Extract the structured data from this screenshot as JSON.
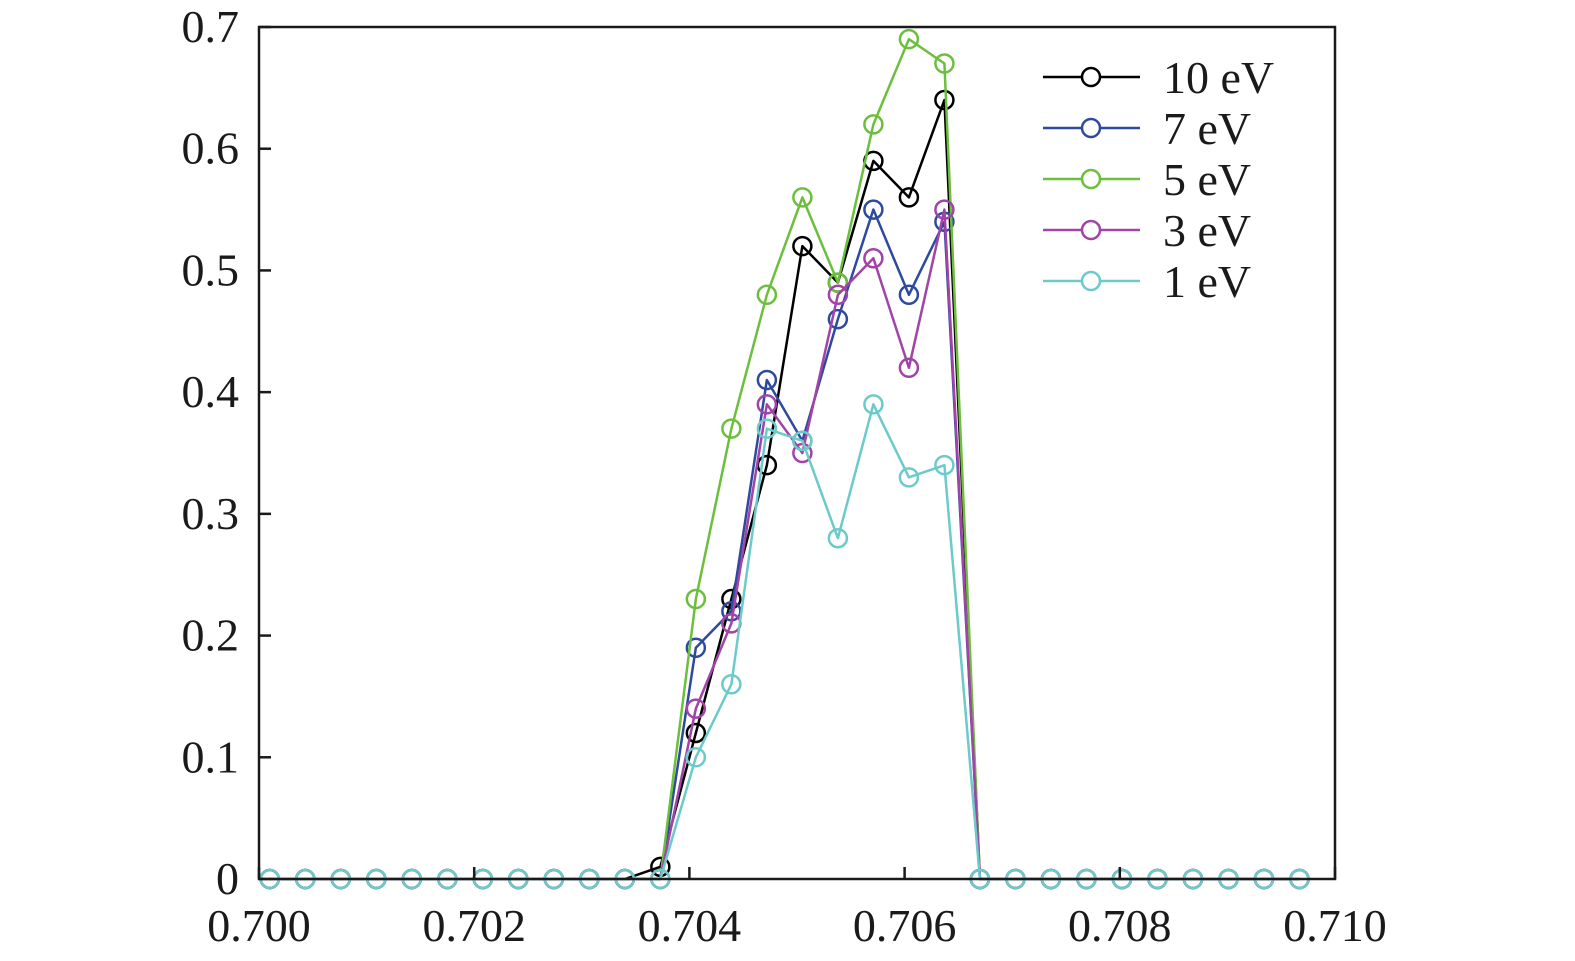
{
  "chart_data": {
    "type": "line",
    "title": "",
    "xlabel": "",
    "ylabel": "",
    "xlim": [
      0.7,
      0.71
    ],
    "ylim": [
      0,
      0.7
    ],
    "grid": false,
    "legend_position": "top-right",
    "marker": "open-circle",
    "x_ticks": [
      "0.700",
      "0.702",
      "0.704",
      "0.706",
      "0.708",
      "0.710"
    ],
    "x_tick_values": [
      0.7,
      0.702,
      0.704,
      0.706,
      0.708,
      0.71
    ],
    "y_ticks": [
      "0",
      "0.1",
      "0.2",
      "0.3",
      "0.4",
      "0.5",
      "0.6",
      "0.7"
    ],
    "y_tick_values": [
      0,
      0.1,
      0.2,
      0.3,
      0.4,
      0.5,
      0.6,
      0.7
    ],
    "x": [
      0.7001,
      0.70043,
      0.70076,
      0.70109,
      0.70142,
      0.70175,
      0.70208,
      0.70241,
      0.70274,
      0.70307,
      0.7034,
      0.70373,
      0.70406,
      0.70439,
      0.70472,
      0.70505,
      0.70538,
      0.70571,
      0.70604,
      0.70637,
      0.7067,
      0.70703,
      0.70736,
      0.70769,
      0.70802,
      0.70835,
      0.70868,
      0.70901,
      0.70934,
      0.70967
    ],
    "series": [
      {
        "name": "10 eV",
        "color": "#000000",
        "values": [
          0,
          0,
          0,
          0,
          0,
          0,
          0,
          0,
          0,
          0,
          0,
          0.01,
          0.12,
          0.23,
          0.34,
          0.52,
          0.49,
          0.59,
          0.56,
          0.64,
          0,
          0,
          0,
          0,
          0,
          0,
          0,
          0,
          0,
          0
        ]
      },
      {
        "name": "7 eV",
        "color": "#2e4a9e",
        "values": [
          0,
          0,
          0,
          0,
          0,
          0,
          0,
          0,
          0,
          0,
          0,
          0,
          0.19,
          0.22,
          0.41,
          0.36,
          0.46,
          0.55,
          0.48,
          0.54,
          0,
          0,
          0,
          0,
          0,
          0,
          0,
          0,
          0,
          0
        ]
      },
      {
        "name": "5 eV",
        "color": "#6cbf3d",
        "values": [
          0,
          0,
          0,
          0,
          0,
          0,
          0,
          0,
          0,
          0,
          0,
          0,
          0.23,
          0.37,
          0.48,
          0.56,
          0.49,
          0.62,
          0.69,
          0.67,
          0,
          0,
          0,
          0,
          0,
          0,
          0,
          0,
          0,
          0
        ]
      },
      {
        "name": "3 eV",
        "color": "#a243a8",
        "values": [
          0,
          0,
          0,
          0,
          0,
          0,
          0,
          0,
          0,
          0,
          0,
          0,
          0.14,
          0.21,
          0.39,
          0.35,
          0.48,
          0.51,
          0.42,
          0.55,
          0,
          0,
          0,
          0,
          0,
          0,
          0,
          0,
          0,
          0
        ]
      },
      {
        "name": "1 eV",
        "color": "#6ccaca",
        "values": [
          0,
          0,
          0,
          0,
          0,
          0,
          0,
          0,
          0,
          0,
          0,
          0,
          0.1,
          0.16,
          0.37,
          0.36,
          0.28,
          0.39,
          0.33,
          0.34,
          0,
          0,
          0,
          0,
          0,
          0,
          0,
          0,
          0,
          0
        ]
      }
    ]
  }
}
